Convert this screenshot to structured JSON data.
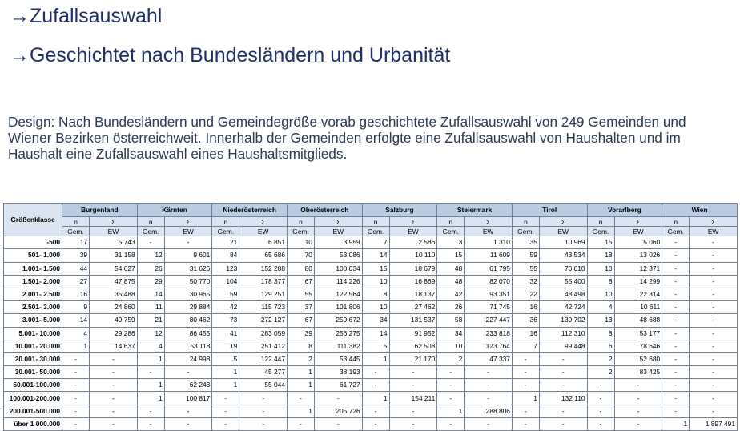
{
  "headings": [
    "→Zufallsauswahl",
    "→Geschichtet nach Bundesländern und Urbanität"
  ],
  "design_text": "Design: Nach Bundesländern und Gemeindegröße vorab geschichtete Zufallsauswahl von 249 Gemeinden und Wiener Bezirken österreichweit. Innerhalb der Gemeinden erfolgte eine Zufallsauswahl von Haushalten und im Haushalt eine Zufallsauswahl eines Haushaltsmitglieds.",
  "table": {
    "row_header": "Größenklasse",
    "states": [
      "Burgenland",
      "Kärnten",
      "Niederösterreich",
      "Oberösterreich",
      "Salzburg",
      "Steiermark",
      "Tirol",
      "Vorarlberg",
      "Wien"
    ],
    "sub_top": [
      "n",
      "Σ"
    ],
    "sub_bottom": [
      "Gem.",
      "EW"
    ],
    "rows": [
      {
        "label": "-500",
        "cells": [
          "17",
          "5 743",
          "-",
          "-",
          "21",
          "6 851",
          "10",
          "3 959",
          "7",
          "2 586",
          "3",
          "1 310",
          "35",
          "10 969",
          "15",
          "5 060",
          "-",
          "-"
        ]
      },
      {
        "label": "501- 1.000",
        "cells": [
          "39",
          "31 158",
          "12",
          "9 601",
          "84",
          "65 686",
          "70",
          "53 086",
          "14",
          "10 110",
          "15",
          "11 609",
          "59",
          "43 534",
          "18",
          "13 026",
          "-",
          "-"
        ]
      },
      {
        "label": "1.001- 1.500",
        "cells": [
          "44",
          "54 627",
          "26",
          "31 626",
          "123",
          "152 288",
          "80",
          "100 034",
          "15",
          "18 679",
          "48",
          "61 795",
          "55",
          "70 010",
          "10",
          "12 371",
          "-",
          "-"
        ]
      },
      {
        "label": "1.501- 2.000",
        "cells": [
          "27",
          "47 875",
          "29",
          "50 770",
          "104",
          "178 377",
          "67",
          "114 226",
          "10",
          "16 869",
          "48",
          "82 070",
          "32",
          "55 400",
          "8",
          "14 299",
          "-",
          "-"
        ]
      },
      {
        "label": "2.001- 2.500",
        "cells": [
          "16",
          "35 488",
          "14",
          "30 965",
          "59",
          "129 251",
          "55",
          "122 564",
          "8",
          "18 137",
          "42",
          "93 351",
          "22",
          "48 498",
          "10",
          "22 314",
          "-",
          "-"
        ]
      },
      {
        "label": "2.501- 3.000",
        "cells": [
          "9",
          "24 860",
          "11",
          "29 884",
          "42",
          "115 723",
          "37",
          "101 806",
          "10",
          "27 462",
          "26",
          "71 745",
          "16",
          "42 724",
          "4",
          "10 611",
          "-",
          "-"
        ]
      },
      {
        "label": "3.001- 5.000",
        "cells": [
          "14",
          "49 759",
          "21",
          "80 462",
          "73",
          "272 127",
          "67",
          "259 672",
          "34",
          "131 537",
          "58",
          "227 447",
          "36",
          "139 702",
          "13",
          "48 688",
          "-",
          "-"
        ]
      },
      {
        "label": "5.001- 10.000",
        "cells": [
          "4",
          "29 286",
          "12",
          "86 455",
          "41",
          "283 059",
          "39",
          "256 275",
          "14",
          "91 952",
          "34",
          "233 818",
          "16",
          "112 310",
          "8",
          "53 177",
          "-",
          "-"
        ]
      },
      {
        "label": "10.001- 20.000",
        "cells": [
          "1",
          "14 637",
          "4",
          "53 118",
          "19",
          "251 412",
          "8",
          "111 382",
          "5",
          "62 508",
          "10",
          "123 764",
          "7",
          "99 448",
          "6",
          "78 646",
          "-",
          "-"
        ]
      },
      {
        "label": "20.001- 30.000",
        "cells": [
          "-",
          "-",
          "1",
          "24 998",
          "5",
          "122 447",
          "2",
          "53 445",
          "1",
          "21 170",
          "2",
          "47 337",
          "-",
          "-",
          "2",
          "52 680",
          "-",
          "-"
        ]
      },
      {
        "label": "30.001- 50.000",
        "cells": [
          "-",
          "-",
          "-",
          "-",
          "1",
          "45 277",
          "1",
          "38 193",
          "-",
          "-",
          "-",
          "-",
          "-",
          "-",
          "2",
          "83 425",
          "-",
          "-"
        ]
      },
      {
        "label": "50.001-100.000",
        "cells": [
          "-",
          "-",
          "1",
          "62 243",
          "1",
          "55 044",
          "1",
          "61 727",
          "-",
          "-",
          "-",
          "-",
          "-",
          "-",
          "-",
          "-",
          "-",
          "-"
        ]
      },
      {
        "label": "100.001-200.000",
        "cells": [
          "-",
          "-",
          "1",
          "100 817",
          "-",
          "-",
          "-",
          "-",
          "1",
          "154 211",
          "-",
          "-",
          "1",
          "132 110",
          "-",
          "-",
          "-",
          "-"
        ]
      },
      {
        "label": "200.001-500.000",
        "cells": [
          "-",
          "-",
          "-",
          "-",
          "-",
          "-",
          "1",
          "205 726",
          "-",
          "-",
          "1",
          "288 806",
          "-",
          "-",
          "-",
          "-",
          "-",
          "-"
        ]
      },
      {
        "label": "über 1 000.000",
        "cells": [
          "-",
          "-",
          "-",
          "-",
          "-",
          "-",
          "-",
          "-",
          "-",
          "-",
          "-",
          "-",
          "-",
          "-",
          "-",
          "-",
          "1",
          "1 897 491"
        ]
      }
    ]
  }
}
